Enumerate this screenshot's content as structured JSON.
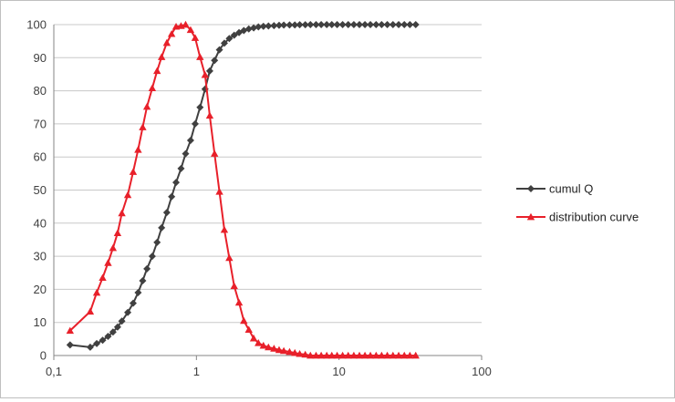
{
  "chart_data": {
    "type": "line",
    "title": "",
    "xlabel": "",
    "ylabel": "",
    "x_scale": "log",
    "xlim": [
      0.1,
      100
    ],
    "ylim": [
      0,
      100
    ],
    "x_ticks": [
      0.1,
      1,
      10,
      100
    ],
    "x_tick_labels": [
      "0,1",
      "1",
      "10",
      "100"
    ],
    "y_ticks": [
      0,
      10,
      20,
      30,
      40,
      50,
      60,
      70,
      80,
      90,
      100
    ],
    "y_tick_labels": [
      "0",
      "10",
      "20",
      "30",
      "40",
      "50",
      "60",
      "70",
      "80",
      "90",
      "100"
    ],
    "grid": "horizontal",
    "legend_position": "right",
    "series": [
      {
        "name": "cumul Q",
        "color": "#404040",
        "marker": "diamond",
        "x": [
          0.13,
          0.18,
          0.2,
          0.22,
          0.24,
          0.26,
          0.28,
          0.3,
          0.33,
          0.36,
          0.39,
          0.42,
          0.45,
          0.49,
          0.53,
          0.57,
          0.62,
          0.67,
          0.72,
          0.78,
          0.84,
          0.91,
          0.98,
          1.06,
          1.15,
          1.24,
          1.34,
          1.45,
          1.57,
          1.7,
          1.84,
          1.99,
          2.15,
          2.33,
          2.52,
          2.72,
          2.95,
          3.2,
          3.5,
          3.8,
          4.1,
          4.5,
          4.9,
          5.3,
          5.8,
          6.3,
          6.9,
          7.5,
          8.2,
          8.9,
          9.7,
          10.6,
          11.6,
          12.7,
          13.9,
          15.2,
          16.6,
          18.2,
          19.9,
          21.8,
          23.9,
          26.2,
          28.7,
          31.4,
          34.5
        ],
        "y": [
          3.2,
          2.5,
          3.6,
          4.6,
          5.8,
          7.1,
          8.6,
          10.4,
          13.0,
          15.8,
          19.0,
          22.6,
          26.2,
          30.0,
          34.2,
          38.6,
          43.2,
          48.0,
          52.3,
          56.5,
          61.0,
          65.0,
          70.0,
          75.0,
          80.5,
          86.0,
          89.2,
          92.4,
          94.4,
          95.8,
          96.8,
          97.6,
          98.2,
          98.7,
          99.0,
          99.3,
          99.5,
          99.6,
          99.7,
          99.8,
          99.85,
          99.9,
          99.9,
          99.95,
          99.95,
          100,
          100,
          100,
          100,
          100,
          100,
          100,
          100,
          100,
          100,
          100,
          100,
          100,
          100,
          100,
          100,
          100,
          100,
          100,
          100
        ]
      },
      {
        "name": "distribution curve",
        "color": "#e8202a",
        "marker": "triangle",
        "x": [
          0.13,
          0.18,
          0.2,
          0.22,
          0.24,
          0.26,
          0.28,
          0.3,
          0.33,
          0.36,
          0.39,
          0.42,
          0.45,
          0.49,
          0.53,
          0.57,
          0.62,
          0.67,
          0.72,
          0.78,
          0.84,
          0.91,
          0.98,
          1.06,
          1.15,
          1.24,
          1.34,
          1.45,
          1.57,
          1.7,
          1.84,
          1.99,
          2.15,
          2.33,
          2.52,
          2.72,
          2.95,
          3.2,
          3.5,
          3.8,
          4.1,
          4.5,
          4.9,
          5.3,
          5.8,
          6.3,
          6.9,
          7.5,
          8.2,
          8.9,
          9.7,
          10.6,
          11.6,
          12.7,
          13.9,
          15.2,
          16.6,
          18.2,
          19.9,
          21.8,
          23.9,
          26.2,
          28.7,
          31.4,
          34.5
        ],
        "y": [
          7.5,
          13.3,
          19.0,
          23.5,
          28.0,
          32.5,
          37.0,
          43.0,
          48.5,
          55.5,
          62.2,
          69.0,
          75.2,
          80.8,
          86.0,
          90.2,
          94.5,
          97.2,
          99.4,
          99.6,
          100,
          98.4,
          96.0,
          90.2,
          84.8,
          72.5,
          61.0,
          49.5,
          38.0,
          29.5,
          21.0,
          16.0,
          10.5,
          7.8,
          5.2,
          3.8,
          3.0,
          2.5,
          2.1,
          1.7,
          1.4,
          1.1,
          0.8,
          0.5,
          0.3,
          0,
          0,
          0,
          0,
          0,
          0,
          0,
          0,
          0,
          0,
          0,
          0,
          0,
          0,
          0,
          0,
          0,
          0,
          0,
          0
        ]
      }
    ]
  }
}
